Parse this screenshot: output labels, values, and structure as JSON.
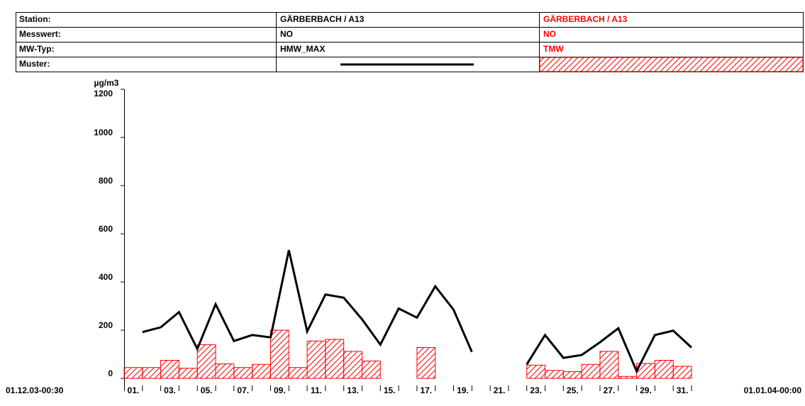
{
  "header": {
    "rows": [
      {
        "label": "Station:",
        "left": "GÄRBERBACH / A13",
        "right": "GÄRBERBACH / A13"
      },
      {
        "label": "Messwert:",
        "left": "NO",
        "right": "NO"
      },
      {
        "label": "MW-Typ:",
        "left": "HMW_MAX",
        "right": "TMW"
      },
      {
        "label": "Muster:"
      }
    ]
  },
  "chart_data": {
    "type": "combo",
    "y_label": "µg/m3",
    "x_start_label": "01.12.03-00:30",
    "x_end_label": "01.01.04-00:00",
    "categories": [
      "01.",
      null,
      "03.",
      null,
      "05.",
      null,
      "07.",
      null,
      "09.",
      null,
      "11.",
      null,
      "13.",
      null,
      "15.",
      null,
      "17.",
      null,
      "19.",
      null,
      "21.",
      null,
      "23.",
      null,
      "25.",
      null,
      "27.",
      null,
      "29.",
      null,
      "31."
    ],
    "series": [
      {
        "type": "line",
        "color": "#000000",
        "values": [
          192,
          212,
          275,
          122,
          308,
          155,
          180,
          170,
          532,
          195,
          348,
          335,
          245,
          140,
          290,
          252,
          382,
          285,
          110,
          null,
          null,
          58,
          180,
          85,
          97,
          150,
          208,
          30,
          180,
          198,
          128
        ]
      },
      {
        "type": "bar",
        "color": "#ff0000",
        "values": [
          45,
          45,
          75,
          42,
          140,
          60,
          45,
          58,
          200,
          45,
          155,
          162,
          112,
          72,
          null,
          null,
          128,
          null,
          null,
          null,
          null,
          null,
          55,
          33,
          28,
          58,
          112,
          8,
          62,
          75,
          50
        ]
      }
    ],
    "ylim": [
      0,
      1200
    ],
    "yticks": [
      0,
      200,
      400,
      600,
      800,
      1000,
      1200
    ]
  }
}
